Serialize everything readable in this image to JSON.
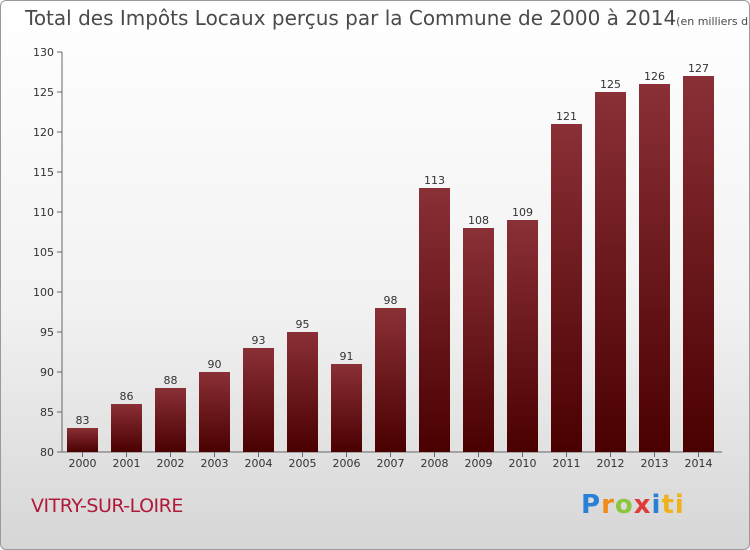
{
  "chart_data": {
    "type": "bar",
    "title": "Total des Impôts Locaux perçus par la Commune de 2000 à 2014",
    "subtitle": "(en milliers d'€)",
    "categories": [
      "2000",
      "2001",
      "2002",
      "2003",
      "2004",
      "2005",
      "2006",
      "2007",
      "2008",
      "2009",
      "2010",
      "2011",
      "2012",
      "2013",
      "2014"
    ],
    "values": [
      83,
      86,
      88,
      90,
      93,
      95,
      91,
      98,
      113,
      108,
      109,
      121,
      125,
      126,
      127
    ],
    "ylim": [
      80,
      130
    ],
    "yticks": [
      80,
      85,
      90,
      95,
      100,
      105,
      110,
      115,
      120,
      125,
      130
    ],
    "xlabel": "",
    "ylabel": "",
    "bar_color_top": "#8a3036",
    "bar_color_bottom": "#4a0000"
  },
  "footer": {
    "commune": "VITRY-SUR-LOIRE",
    "brand_letters": [
      "P",
      "r",
      "o",
      "x",
      "i",
      "ti"
    ]
  }
}
